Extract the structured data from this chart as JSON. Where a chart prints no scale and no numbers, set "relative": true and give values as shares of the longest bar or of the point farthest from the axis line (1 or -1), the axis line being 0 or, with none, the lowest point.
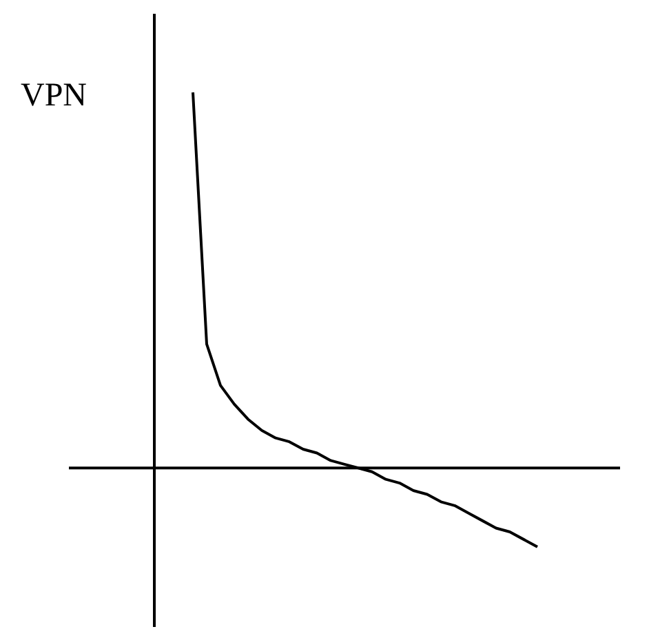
{
  "chart_data": {
    "type": "line",
    "ylabel": "VPN",
    "relative": true,
    "color": "#000000",
    "marker": "none",
    "line_style": "solid",
    "legend": false,
    "categories": [
      null,
      null,
      null,
      null,
      null,
      null,
      null,
      null,
      null,
      null,
      null,
      null,
      null,
      null,
      null,
      null,
      null,
      null,
      null,
      null,
      null,
      null,
      null,
      null,
      null,
      null,
      null,
      null,
      null,
      null,
      null,
      null,
      null,
      null,
      null,
      null,
      null,
      null,
      null,
      null,
      null
    ],
    "values": [
      null,
      null,
      null,
      null,
      null,
      null,
      null,
      null,
      null,
      1,
      0.33,
      0.22,
      0.17,
      0.13,
      0.1,
      0.08,
      0.07,
      0.05,
      0.04,
      0.02,
      0.01,
      0,
      -0.01,
      -0.03,
      -0.04,
      -0.06,
      -0.07,
      -0.09,
      -0.1,
      -0.12,
      -0.14,
      -0.16,
      -0.17,
      -0.19,
      -0.21,
      null,
      null,
      null,
      null,
      null,
      null
    ]
  }
}
